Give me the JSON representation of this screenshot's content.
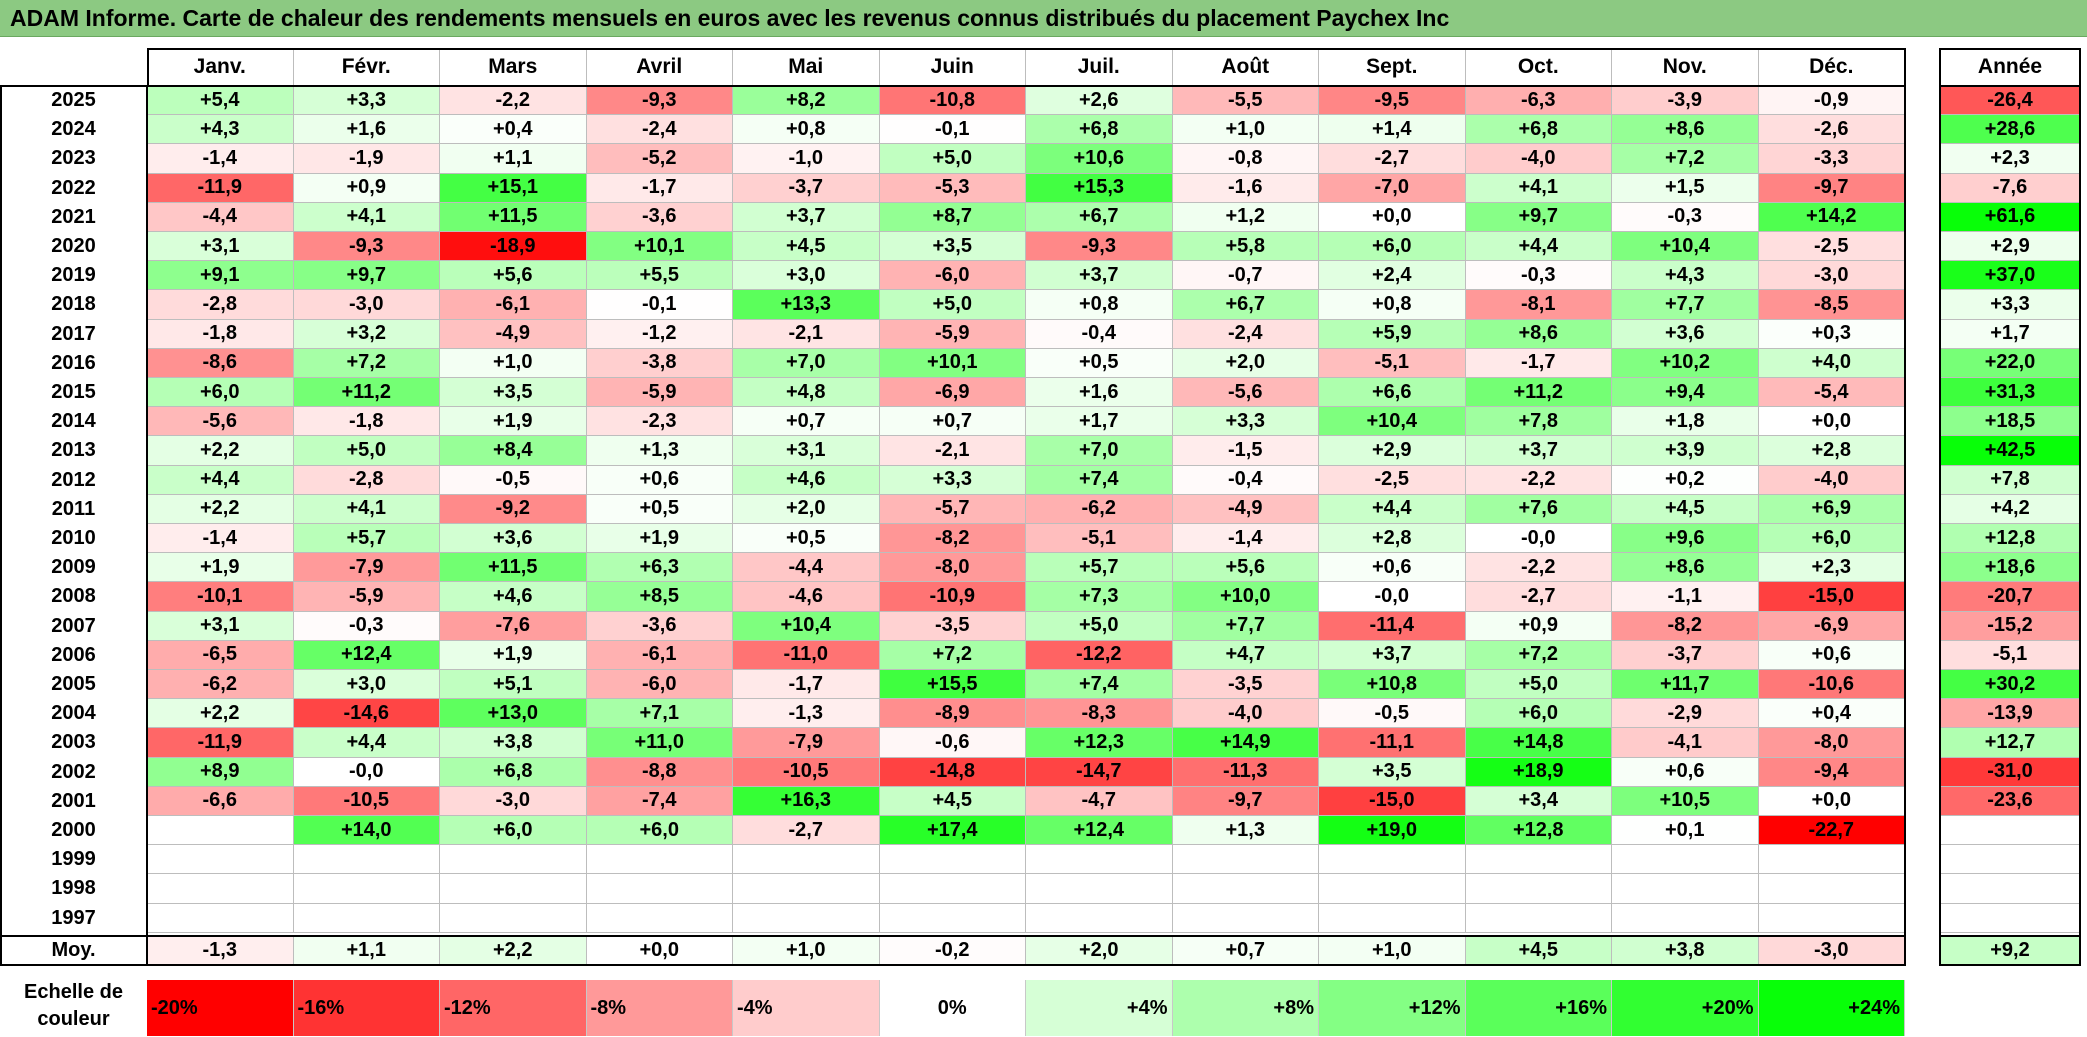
{
  "title": "ADAM Informe. Carte de chaleur des rendements mensuels en euros avec les revenus connus distribués du placement Paychex Inc",
  "chart_data": {
    "type": "heatmap",
    "title": "ADAM Informe. Carte de chaleur des rendements mensuels en euros avec les revenus connus distribués du placement Paychex Inc",
    "columns": [
      "Janv.",
      "Févr.",
      "Mars",
      "Avril",
      "Mai",
      "Juin",
      "Juil.",
      "Août",
      "Sept.",
      "Oct.",
      "Nov.",
      "Déc."
    ],
    "year_column_label": "Année",
    "rows": [
      {
        "year": "2025",
        "values": [
          "+5,4",
          "+3,3",
          "-2,2",
          "-9,3",
          "+8,2",
          "-10,8",
          "+2,6",
          "-5,5",
          "-9,5",
          "-6,3",
          "-3,9",
          "-0,9"
        ],
        "annual": "-26,4"
      },
      {
        "year": "2024",
        "values": [
          "+4,3",
          "+1,6",
          "+0,4",
          "-2,4",
          "+0,8",
          "-0,1",
          "+6,8",
          "+1,0",
          "+1,4",
          "+6,8",
          "+8,6",
          "-2,6"
        ],
        "annual": "+28,6"
      },
      {
        "year": "2023",
        "values": [
          "-1,4",
          "-1,9",
          "+1,1",
          "-5,2",
          "-1,0",
          "+5,0",
          "+10,6",
          "-0,8",
          "-2,7",
          "-4,0",
          "+7,2",
          "-3,3"
        ],
        "annual": "+2,3"
      },
      {
        "year": "2022",
        "values": [
          "-11,9",
          "+0,9",
          "+15,1",
          "-1,7",
          "-3,7",
          "-5,3",
          "+15,3",
          "-1,6",
          "-7,0",
          "+4,1",
          "+1,5",
          "-9,7"
        ],
        "annual": "-7,6"
      },
      {
        "year": "2021",
        "values": [
          "-4,4",
          "+4,1",
          "+11,5",
          "-3,6",
          "+3,7",
          "+8,7",
          "+6,7",
          "+1,2",
          "+0,0",
          "+9,7",
          "-0,3",
          "+14,2"
        ],
        "annual": "+61,6"
      },
      {
        "year": "2020",
        "values": [
          "+3,1",
          "-9,3",
          "-18,9",
          "+10,1",
          "+4,5",
          "+3,5",
          "-9,3",
          "+5,8",
          "+6,0",
          "+4,4",
          "+10,4",
          "-2,5"
        ],
        "annual": "+2,9"
      },
      {
        "year": "2019",
        "values": [
          "+9,1",
          "+9,7",
          "+5,6",
          "+5,5",
          "+3,0",
          "-6,0",
          "+3,7",
          "-0,7",
          "+2,4",
          "-0,3",
          "+4,3",
          "-3,0"
        ],
        "annual": "+37,0"
      },
      {
        "year": "2018",
        "values": [
          "-2,8",
          "-3,0",
          "-6,1",
          "-0,1",
          "+13,3",
          "+5,0",
          "+0,8",
          "+6,7",
          "+0,8",
          "-8,1",
          "+7,7",
          "-8,5"
        ],
        "annual": "+3,3"
      },
      {
        "year": "2017",
        "values": [
          "-1,8",
          "+3,2",
          "-4,9",
          "-1,2",
          "-2,1",
          "-5,9",
          "-0,4",
          "-2,4",
          "+5,9",
          "+8,6",
          "+3,6",
          "+0,3"
        ],
        "annual": "+1,7"
      },
      {
        "year": "2016",
        "values": [
          "-8,6",
          "+7,2",
          "+1,0",
          "-3,8",
          "+7,0",
          "+10,1",
          "+0,5",
          "+2,0",
          "-5,1",
          "-1,7",
          "+10,2",
          "+4,0"
        ],
        "annual": "+22,0"
      },
      {
        "year": "2015",
        "values": [
          "+6,0",
          "+11,2",
          "+3,5",
          "-5,9",
          "+4,8",
          "-6,9",
          "+1,6",
          "-5,6",
          "+6,6",
          "+11,2",
          "+9,4",
          "-5,4"
        ],
        "annual": "+31,3"
      },
      {
        "year": "2014",
        "values": [
          "-5,6",
          "-1,8",
          "+1,9",
          "-2,3",
          "+0,7",
          "+0,7",
          "+1,7",
          "+3,3",
          "+10,4",
          "+7,8",
          "+1,8",
          "+0,0"
        ],
        "annual": "+18,5"
      },
      {
        "year": "2013",
        "values": [
          "+2,2",
          "+5,0",
          "+8,4",
          "+1,3",
          "+3,1",
          "-2,1",
          "+7,0",
          "-1,5",
          "+2,9",
          "+3,7",
          "+3,9",
          "+2,8"
        ],
        "annual": "+42,5"
      },
      {
        "year": "2012",
        "values": [
          "+4,4",
          "-2,8",
          "-0,5",
          "+0,6",
          "+4,6",
          "+3,3",
          "+7,4",
          "-0,4",
          "-2,5",
          "-2,2",
          "+0,2",
          "-4,0"
        ],
        "annual": "+7,8"
      },
      {
        "year": "2011",
        "values": [
          "+2,2",
          "+4,1",
          "-9,2",
          "+0,5",
          "+2,0",
          "-5,7",
          "-6,2",
          "-4,9",
          "+4,4",
          "+7,6",
          "+4,5",
          "+6,9"
        ],
        "annual": "+4,2"
      },
      {
        "year": "2010",
        "values": [
          "-1,4",
          "+5,7",
          "+3,6",
          "+1,9",
          "+0,5",
          "-8,2",
          "-5,1",
          "-1,4",
          "+2,8",
          "-0,0",
          "+9,6",
          "+6,0"
        ],
        "annual": "+12,8"
      },
      {
        "year": "2009",
        "values": [
          "+1,9",
          "-7,9",
          "+11,5",
          "+6,3",
          "-4,4",
          "-8,0",
          "+5,7",
          "+5,6",
          "+0,6",
          "-2,2",
          "+8,6",
          "+2,3"
        ],
        "annual": "+18,6"
      },
      {
        "year": "2008",
        "values": [
          "-10,1",
          "-5,9",
          "+4,6",
          "+8,5",
          "-4,6",
          "-10,9",
          "+7,3",
          "+10,0",
          "-0,0",
          "-2,7",
          "-1,1",
          "-15,0"
        ],
        "annual": "-20,7"
      },
      {
        "year": "2007",
        "values": [
          "+3,1",
          "-0,3",
          "-7,6",
          "-3,6",
          "+10,4",
          "-3,5",
          "+5,0",
          "+7,7",
          "-11,4",
          "+0,9",
          "-8,2",
          "-6,9"
        ],
        "annual": "-15,2"
      },
      {
        "year": "2006",
        "values": [
          "-6,5",
          "+12,4",
          "+1,9",
          "-6,1",
          "-11,0",
          "+7,2",
          "-12,2",
          "+4,7",
          "+3,7",
          "+7,2",
          "-3,7",
          "+0,6"
        ],
        "annual": "-5,1"
      },
      {
        "year": "2005",
        "values": [
          "-6,2",
          "+3,0",
          "+5,1",
          "-6,0",
          "-1,7",
          "+15,5",
          "+7,4",
          "-3,5",
          "+10,8",
          "+5,0",
          "+11,7",
          "-10,6"
        ],
        "annual": "+30,2"
      },
      {
        "year": "2004",
        "values": [
          "+2,2",
          "-14,6",
          "+13,0",
          "+7,1",
          "-1,3",
          "-8,9",
          "-8,3",
          "-4,0",
          "-0,5",
          "+6,0",
          "-2,9",
          "+0,4"
        ],
        "annual": "-13,9"
      },
      {
        "year": "2003",
        "values": [
          "-11,9",
          "+4,4",
          "+3,8",
          "+11,0",
          "-7,9",
          "-0,6",
          "+12,3",
          "+14,9",
          "-11,1",
          "+14,8",
          "-4,1",
          "-8,0"
        ],
        "annual": "+12,7"
      },
      {
        "year": "2002",
        "values": [
          "+8,9",
          "-0,0",
          "+6,8",
          "-8,8",
          "-10,5",
          "-14,8",
          "-14,7",
          "-11,3",
          "+3,5",
          "+18,9",
          "+0,6",
          "-9,4"
        ],
        "annual": "-31,0"
      },
      {
        "year": "2001",
        "values": [
          "-6,6",
          "-10,5",
          "-3,0",
          "-7,4",
          "+16,3",
          "+4,5",
          "-4,7",
          "-9,7",
          "-15,0",
          "+3,4",
          "+10,5",
          "+0,0"
        ],
        "annual": "-23,6"
      },
      {
        "year": "2000",
        "values": [
          "",
          "+14,0",
          "+6,0",
          "+6,0",
          "-2,7",
          "+17,4",
          "+12,4",
          "+1,3",
          "+19,0",
          "+12,8",
          "+0,1",
          "-22,7"
        ],
        "annual": ""
      },
      {
        "year": "1999",
        "values": [
          "",
          "",
          "",
          "",
          "",
          "",
          "",
          "",
          "",
          "",
          "",
          ""
        ],
        "annual": ""
      },
      {
        "year": "1998",
        "values": [
          "",
          "",
          "",
          "",
          "",
          "",
          "",
          "",
          "",
          "",
          "",
          ""
        ],
        "annual": ""
      },
      {
        "year": "1997",
        "values": [
          "",
          "",
          "",
          "",
          "",
          "",
          "",
          "",
          "",
          "",
          "",
          ""
        ],
        "annual": ""
      }
    ],
    "average": {
      "label": "Moy.",
      "values": [
        "-1,3",
        "+1,1",
        "+2,2",
        "+0,0",
        "+1,0",
        "-0,2",
        "+2,0",
        "+0,7",
        "+1,0",
        "+4,5",
        "+3,8",
        "-3,0"
      ],
      "annual": "+9,2"
    },
    "scale": {
      "label": "Echelle de couleur",
      "steps": [
        {
          "label": "-20%",
          "value": -20,
          "color": "#ff0000"
        },
        {
          "label": "-16%",
          "value": -16,
          "color": "#ff3333"
        },
        {
          "label": "-12%",
          "value": -12,
          "color": "#ff6666"
        },
        {
          "label": "-8%",
          "value": -8,
          "color": "#ff9999"
        },
        {
          "label": "-4%",
          "value": -4,
          "color": "#ffcccc"
        },
        {
          "label": "0%",
          "value": 0,
          "color": "#ffffff"
        },
        {
          "label": "+4%",
          "value": 4,
          "color": "#d6ffd6"
        },
        {
          "label": "+8%",
          "value": 8,
          "color": "#adffad"
        },
        {
          "label": "+12%",
          "value": 12,
          "color": "#84ff84"
        },
        {
          "label": "+16%",
          "value": 16,
          "color": "#5aff5a"
        },
        {
          "label": "+20%",
          "value": 20,
          "color": "#31ff31"
        },
        {
          "label": "+24%",
          "value": 24,
          "color": "#08ff08"
        }
      ]
    },
    "colors": {
      "negative_max": "#ff0000",
      "neutral": "#ffffff",
      "positive_max": "#00ff00",
      "title_bar": "#8cc982"
    }
  }
}
